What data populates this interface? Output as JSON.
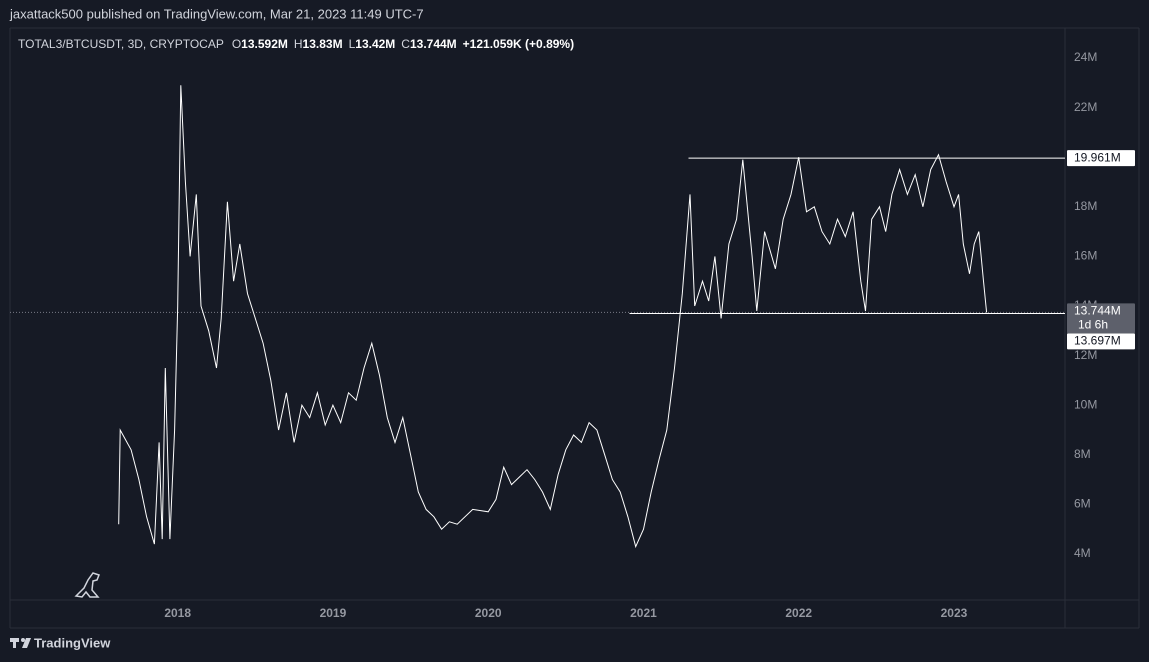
{
  "header": {
    "text": "jaxattack500 published on TradingView.com, Mar 21, 2023 11:49 UTC-7"
  },
  "chart_data": {
    "type": "line",
    "legend": {
      "symbol": "TOTAL3/BTCUSDT, 3D, CRYPTOCAP",
      "ohlc": [
        {
          "label": "O",
          "value": "13.592M"
        },
        {
          "label": "H",
          "value": "13.83M"
        },
        {
          "label": "L",
          "value": "13.42M"
        },
        {
          "label": "C",
          "value": "13.744M"
        }
      ],
      "change": "+121.059K (+0.89%)"
    },
    "x": [
      2017.62,
      2017.63,
      2017.7,
      2017.75,
      2017.8,
      2017.85,
      2017.88,
      2017.9,
      2017.92,
      2017.95,
      2017.98,
      2018.0,
      2018.02,
      2018.05,
      2018.08,
      2018.12,
      2018.15,
      2018.2,
      2018.25,
      2018.28,
      2018.32,
      2018.36,
      2018.4,
      2018.45,
      2018.5,
      2018.55,
      2018.6,
      2018.65,
      2018.7,
      2018.75,
      2018.8,
      2018.85,
      2018.9,
      2018.95,
      2019.0,
      2019.05,
      2019.1,
      2019.15,
      2019.2,
      2019.25,
      2019.3,
      2019.35,
      2019.4,
      2019.45,
      2019.5,
      2019.55,
      2019.6,
      2019.65,
      2019.7,
      2019.75,
      2019.8,
      2019.9,
      2020.0,
      2020.05,
      2020.1,
      2020.15,
      2020.2,
      2020.25,
      2020.3,
      2020.35,
      2020.4,
      2020.45,
      2020.5,
      2020.55,
      2020.6,
      2020.65,
      2020.7,
      2020.75,
      2020.8,
      2020.85,
      2020.9,
      2020.95,
      2021.0,
      2021.05,
      2021.1,
      2021.15,
      2021.2,
      2021.25,
      2021.3,
      2021.33,
      2021.38,
      2021.42,
      2021.46,
      2021.5,
      2021.55,
      2021.6,
      2021.64,
      2021.7,
      2021.73,
      2021.78,
      2021.85,
      2021.9,
      2021.95,
      2022.0,
      2022.05,
      2022.1,
      2022.15,
      2022.2,
      2022.25,
      2022.3,
      2022.35,
      2022.4,
      2022.43,
      2022.47,
      2022.52,
      2022.56,
      2022.6,
      2022.65,
      2022.7,
      2022.75,
      2022.8,
      2022.85,
      2022.9,
      2022.95,
      2023.0,
      2023.03,
      2023.06,
      2023.1,
      2023.13,
      2023.16,
      2023.19,
      2023.21
    ],
    "series": [
      {
        "name": "TOTAL3/BTCUSDT",
        "color": "#ffffff",
        "values": [
          5.2,
          9.0,
          8.2,
          7.0,
          5.5,
          4.4,
          8.5,
          4.6,
          11.5,
          4.6,
          9,
          14,
          22.9,
          19,
          16,
          18.5,
          14,
          13,
          11.5,
          13.5,
          18.2,
          15,
          16.5,
          14.5,
          13.5,
          12.5,
          11,
          9,
          10.5,
          8.5,
          10,
          9.5,
          10.5,
          9.2,
          10,
          9.3,
          10.5,
          10.2,
          11.5,
          12.5,
          11.2,
          9.5,
          8.5,
          9.5,
          8,
          6.5,
          5.8,
          5.5,
          5.0,
          5.3,
          5.2,
          5.8,
          5.7,
          6.2,
          7.5,
          6.8,
          7.1,
          7.4,
          7.0,
          6.5,
          5.8,
          7.2,
          8.2,
          8.8,
          8.5,
          9.3,
          9.0,
          8.0,
          7.0,
          6.5,
          5.5,
          4.3,
          5.0,
          6.5,
          7.8,
          9,
          11.5,
          14.5,
          18.5,
          14,
          15,
          14.2,
          16,
          13.5,
          16.5,
          17.5,
          19.9,
          16,
          13.8,
          17,
          15.5,
          17.5,
          18.5,
          20.0,
          17.8,
          18,
          17,
          16.5,
          17.5,
          16.8,
          17.8,
          15,
          13.8,
          17.5,
          18.0,
          17.0,
          18.5,
          19.5,
          18.5,
          19.3,
          18.0,
          19.5,
          20.1,
          19,
          18,
          18.5,
          16.5,
          15.3,
          16.5,
          17,
          15,
          13.744
        ]
      }
    ],
    "xlim": [
      2016.92,
      2023.715
    ],
    "xticks": [
      2018,
      2019,
      2020,
      2021,
      2022,
      2023
    ],
    "ylim": [
      2.145,
      25.21
    ],
    "yticks": [
      {
        "value": 4,
        "label": "4M"
      },
      {
        "value": 6,
        "label": "6M"
      },
      {
        "value": 8,
        "label": "8M"
      },
      {
        "value": 10,
        "label": "10M"
      },
      {
        "value": 12,
        "label": "12M"
      },
      {
        "value": 14,
        "label": "14M"
      },
      {
        "value": 16,
        "label": "16M"
      },
      {
        "value": 18,
        "label": "18M"
      },
      {
        "value": 20,
        "label": "20M"
      },
      {
        "value": 22,
        "label": "22M"
      },
      {
        "value": 24,
        "label": "24M"
      }
    ],
    "grid": false,
    "levels": [
      {
        "value": 19.961,
        "label": "19.961M",
        "x_start": 2021.29
      },
      {
        "value": 13.697,
        "label": "13.697M",
        "x_start": 2020.91
      }
    ],
    "current": {
      "value": 13.744,
      "label": "13.744M",
      "countdown": "1d 6h"
    }
  },
  "footer": {
    "brand": "TradingView"
  }
}
